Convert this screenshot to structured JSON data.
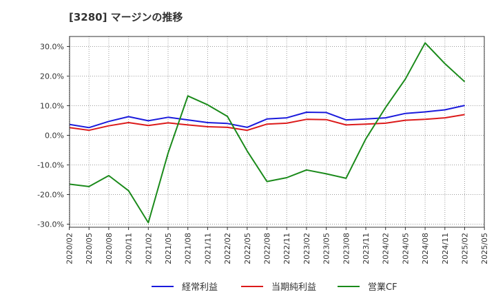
{
  "chart_data": {
    "type": "line",
    "title": "[3280]  マージンの推移",
    "x": [
      "2020/02",
      "2020/05",
      "2020/08",
      "2020/11",
      "2021/02",
      "2021/05",
      "2021/08",
      "2021/11",
      "2022/02",
      "2022/05",
      "2022/08",
      "2022/11",
      "2023/02",
      "2023/05",
      "2023/08",
      "2023/11",
      "2024/02",
      "2024/05",
      "2024/08",
      "2024/11",
      "2025/02"
    ],
    "x_ticks": [
      "2020/02",
      "2020/05",
      "2020/08",
      "2020/11",
      "2021/02",
      "2021/05",
      "2021/08",
      "2021/11",
      "2022/02",
      "2022/05",
      "2022/08",
      "2022/11",
      "2023/02",
      "2023/05",
      "2023/08",
      "2023/11",
      "2024/02",
      "2024/05",
      "2024/08",
      "2024/11",
      "2025/02",
      "2025/05"
    ],
    "y_ticks": [
      "30.0%",
      "20.0%",
      "10.0%",
      "0.0%",
      "-10.0%",
      "-20.0%",
      "-30.0%"
    ],
    "ylim": [
      -31,
      33.5
    ],
    "grid": true,
    "legend_position": "bottom",
    "series": [
      {
        "name": "経常利益",
        "color": "#1a1adc",
        "values": [
          3.7,
          2.6,
          4.7,
          6.3,
          4.9,
          6.1,
          5.2,
          4.3,
          4.0,
          2.7,
          5.5,
          5.9,
          7.8,
          7.7,
          5.2,
          5.5,
          5.9,
          7.4,
          7.9,
          8.6,
          10.1
        ]
      },
      {
        "name": "当期純利益",
        "color": "#dc1a1a",
        "values": [
          2.6,
          1.7,
          3.2,
          4.3,
          3.3,
          4.2,
          3.5,
          2.9,
          2.7,
          1.7,
          3.8,
          4.1,
          5.4,
          5.3,
          3.5,
          3.8,
          4.1,
          5.1,
          5.4,
          5.9,
          7.0
        ]
      },
      {
        "name": "営業CF",
        "color": "#1a8a1a",
        "values": [
          -16.5,
          -17.3,
          -13.6,
          -18.7,
          -29.5,
          -6.0,
          13.3,
          10.3,
          6.4,
          -5.3,
          -15.6,
          -14.3,
          -11.7,
          -13.0,
          -14.5,
          -1.2,
          9.4,
          19.0,
          31.2,
          24.2,
          18.1
        ]
      }
    ]
  }
}
